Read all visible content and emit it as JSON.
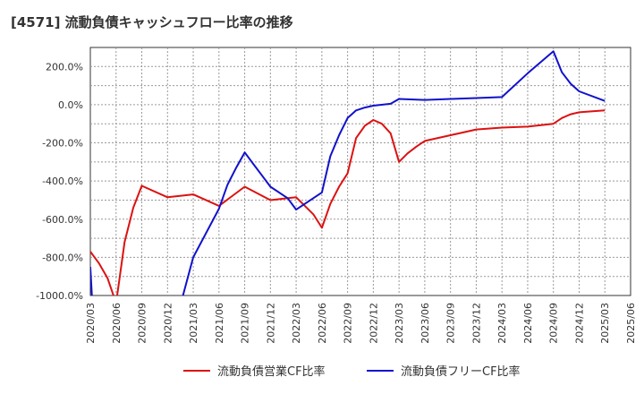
{
  "chart_data": {
    "type": "line",
    "title": "[4571]  流動負債キャッシュフロー比率の推移",
    "ylim": [
      -1000,
      300
    ],
    "yticks": [
      -1000,
      -800,
      -600,
      -400,
      -200,
      0,
      200
    ],
    "ytick_labels": [
      "-1000.0%",
      "-800.0%",
      "-600.0%",
      "-400.0%",
      "-200.0%",
      "0.0%",
      "200.0%"
    ],
    "xtick_labels": [
      "2020/03",
      "2020/06",
      "2020/09",
      "2020/12",
      "2021/03",
      "2021/06",
      "2021/09",
      "2021/12",
      "2022/03",
      "2022/06",
      "2022/09",
      "2022/12",
      "2023/03",
      "2023/06",
      "2023/09",
      "2023/12",
      "2024/03",
      "2024/06",
      "2024/09",
      "2024/12",
      "2025/03",
      "2025/06"
    ],
    "xlabel": "",
    "ylabel": "",
    "grid": true,
    "legend_position": "bottom",
    "series": [
      {
        "name": "流動負債営業CF比率",
        "color": "#dd1111",
        "points": [
          [
            0,
            -770
          ],
          [
            0.33,
            -830
          ],
          [
            0.67,
            -910
          ],
          [
            1,
            -1040
          ],
          [
            1.33,
            -720
          ],
          [
            1.67,
            -540
          ],
          [
            2,
            -425
          ],
          [
            3,
            -485
          ],
          [
            4,
            -470
          ],
          [
            5,
            -530
          ],
          [
            6,
            -430
          ],
          [
            7,
            -500
          ],
          [
            8,
            -485
          ],
          [
            8.67,
            -575
          ],
          [
            9,
            -645
          ],
          [
            9.33,
            -520
          ],
          [
            9.67,
            -430
          ],
          [
            10,
            -360
          ],
          [
            10.33,
            -175
          ],
          [
            10.67,
            -110
          ],
          [
            11,
            -80
          ],
          [
            11.33,
            -100
          ],
          [
            11.67,
            -150
          ],
          [
            12,
            -300
          ],
          [
            12.33,
            -255
          ],
          [
            12.67,
            -220
          ],
          [
            13,
            -190
          ],
          [
            14,
            -160
          ],
          [
            15,
            -130
          ],
          [
            16,
            -120
          ],
          [
            17,
            -115
          ],
          [
            18,
            -100
          ],
          [
            18.33,
            -70
          ],
          [
            18.67,
            -50
          ],
          [
            19,
            -40
          ],
          [
            20,
            -30
          ]
        ]
      },
      {
        "name": "流動負債フリーCF比率",
        "color": "#1111cc",
        "points": [
          [
            0,
            -850
          ],
          [
            0.08,
            -1050
          ],
          [
            3.5,
            -1050
          ],
          [
            4,
            -800
          ],
          [
            5,
            -545
          ],
          [
            5.33,
            -420
          ],
          [
            5.67,
            -330
          ],
          [
            6,
            -250
          ],
          [
            6.33,
            -310
          ],
          [
            6.67,
            -370
          ],
          [
            7,
            -430
          ],
          [
            7.67,
            -490
          ],
          [
            8,
            -550
          ],
          [
            9,
            -460
          ],
          [
            9.33,
            -270
          ],
          [
            9.67,
            -160
          ],
          [
            10,
            -70
          ],
          [
            10.33,
            -30
          ],
          [
            10.67,
            -15
          ],
          [
            11,
            -5
          ],
          [
            11.67,
            5
          ],
          [
            12,
            30
          ],
          [
            13,
            25
          ],
          [
            14,
            30
          ],
          [
            15,
            35
          ],
          [
            16,
            40
          ],
          [
            17,
            165
          ],
          [
            18,
            280
          ],
          [
            18.33,
            170
          ],
          [
            18.67,
            110
          ],
          [
            19,
            70
          ],
          [
            20,
            20
          ]
        ]
      }
    ]
  }
}
